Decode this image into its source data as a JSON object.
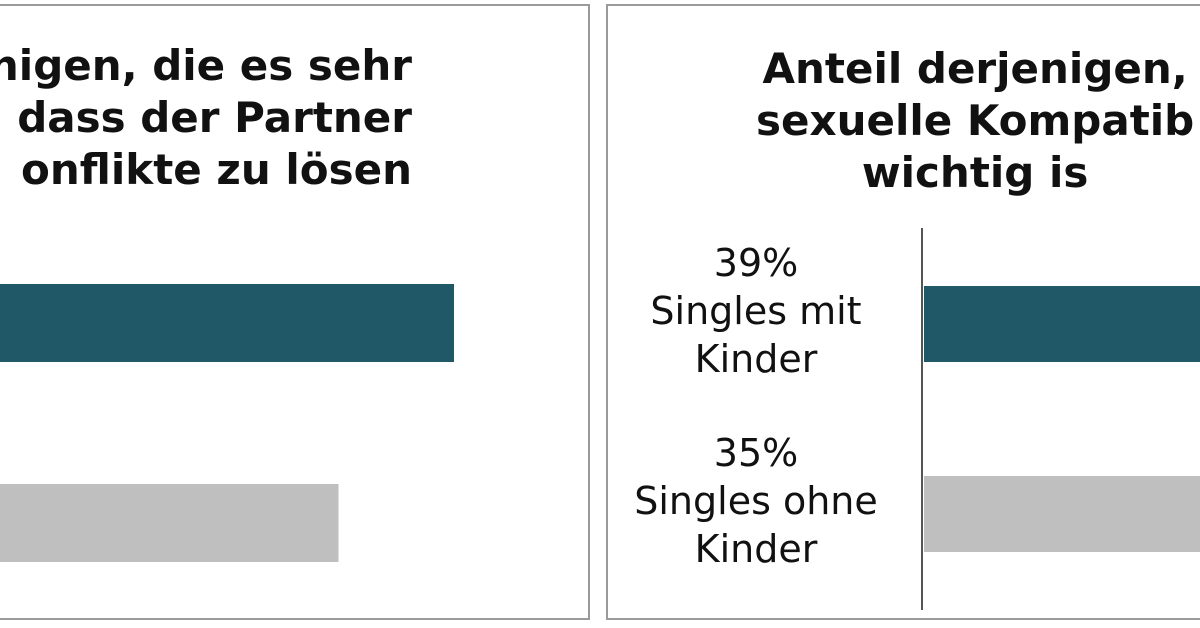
{
  "chart_data": [
    {
      "type": "bar",
      "title_lines": [
        "nigen, die es sehr",
        "n, dass der Partner",
        "onflikte zu lösen"
      ],
      "categories": [
        "",
        ""
      ],
      "values": [
        null,
        null
      ],
      "bar_extent_fraction": [
        1.0,
        0.75
      ],
      "colors": [
        "#215868",
        "#bfbfbf"
      ]
    },
    {
      "type": "bar",
      "title_lines": [
        "Anteil derjenigen,",
        "sexuelle Kompatib",
        "wichtig is"
      ],
      "categories": [
        "Singles mit Kinder",
        "Singles ohne Kinder"
      ],
      "category_label_lines": [
        [
          "39%",
          "Singles mit",
          "Kinder"
        ],
        [
          "35%",
          "Singles ohne",
          "Kinder"
        ]
      ],
      "values": [
        39,
        35
      ],
      "unit": "%",
      "colors": [
        "#215868",
        "#bfbfbf"
      ]
    }
  ]
}
